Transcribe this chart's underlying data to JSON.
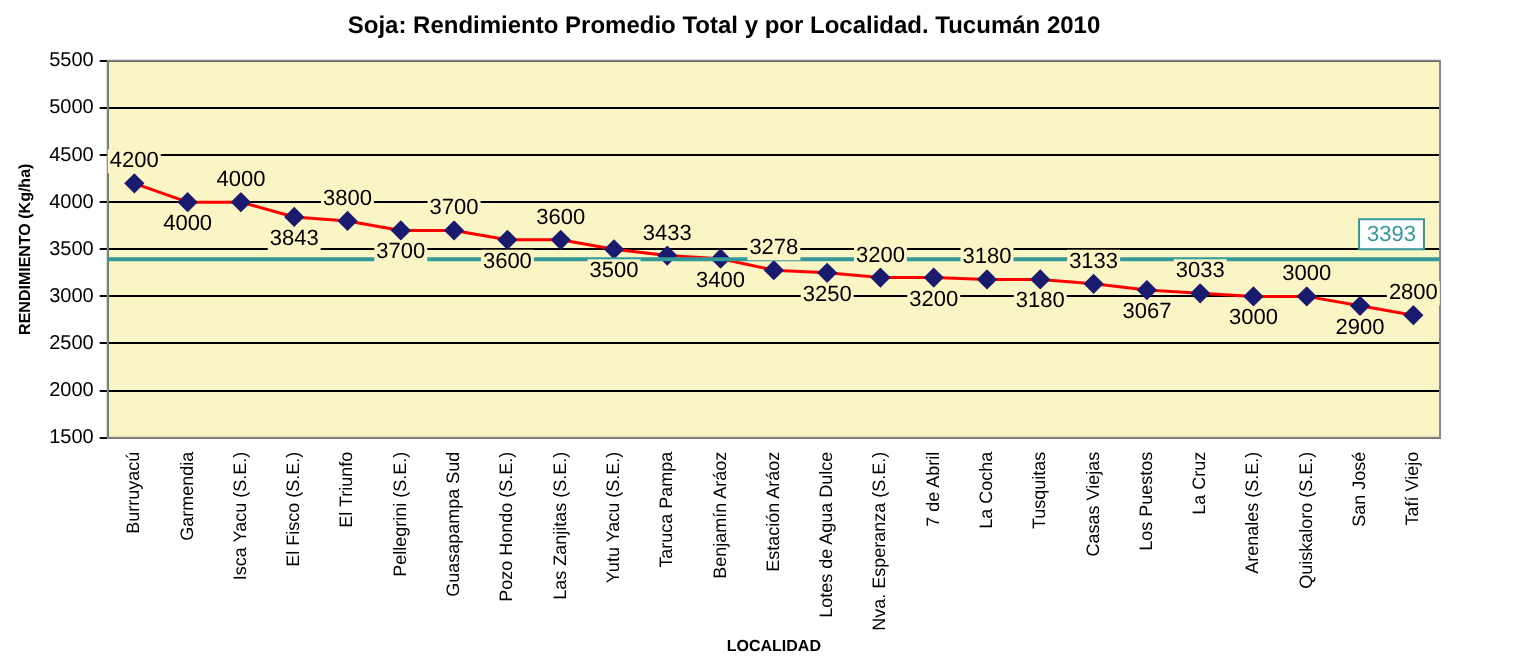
{
  "chart_data": {
    "type": "line",
    "title": "Soja: Rendimiento Promedio Total y por Localidad. Tucumán 2010",
    "xlabel": "LOCALIDAD",
    "ylabel": "RENDIMIENTO (Kg/ha)",
    "categories": [
      "Burruyacú",
      "Garmendia",
      "Isca Yacu (S.E.)",
      "El Fisco (S.E.)",
      "El Triunfo",
      "Pellegrini (S.E.)",
      "Guasapampa Sud",
      "Pozo Hondo (S.E.)",
      "Las Zanjitas (S.E.)",
      "Yutu Yacu (S.E.)",
      "Taruca Pampa",
      "Benjamín Aráoz",
      "Estación Aráoz",
      "Lotes de Agua Dulce",
      "Nva. Esperanza (S.E.)",
      "7 de Abril",
      "La Cocha",
      "Tusquitas",
      "Casas Viejas",
      "Los Puestos",
      "La Cruz",
      "Arenales (S.E.)",
      "Quiskaloro (S.E.)",
      "San José",
      "Tafí Viejo"
    ],
    "series": [
      {
        "color": "#ff0000",
        "values": [
          4200,
          4000,
          4000,
          3843,
          3800,
          3700,
          3700,
          3600,
          3600,
          3500,
          3433,
          3400,
          3278,
          3250,
          3200,
          3200,
          3180,
          3180,
          3133,
          3067,
          3033,
          3000,
          3000,
          2900,
          2800
        ]
      }
    ],
    "ylim": [
      1500,
      5500
    ],
    "yticks": [
      1500,
      2000,
      2500,
      3000,
      3500,
      4000,
      4500,
      5000,
      5500
    ],
    "grid": "y",
    "legend": false,
    "marker": "diamond",
    "line_style": "solid",
    "data_labels": true,
    "ref_lines": [
      {
        "axis": "y",
        "value": 3393,
        "label": "3393",
        "color": "#339999"
      }
    ]
  }
}
